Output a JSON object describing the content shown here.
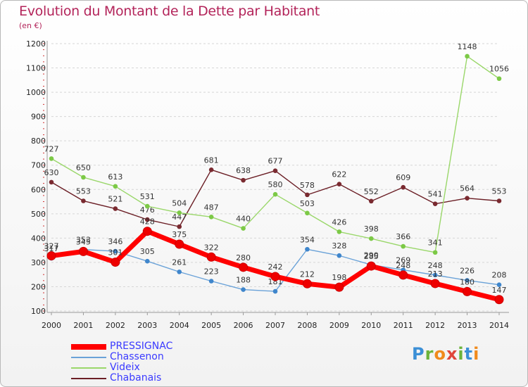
{
  "title": "Evolution du Montant de la Dette par Habitant",
  "subtitle": "(en €)",
  "logo": {
    "text": "Proxiti",
    "colors": [
      "#3b8fd6",
      "#6bb33a",
      "#f08a1c",
      "#e0453a",
      "#6bb33a",
      "#3b8fd6",
      "#f08a1c"
    ]
  },
  "chart_data": {
    "type": "line",
    "x": [
      "2000",
      "2001",
      "2002",
      "2003",
      "2004",
      "2005",
      "2006",
      "2007",
      "2008",
      "2009",
      "2010",
      "2011",
      "2012",
      "2013",
      "2014"
    ],
    "ylim": [
      100,
      1200
    ],
    "yticks": [
      100,
      200,
      300,
      400,
      500,
      600,
      700,
      800,
      900,
      1000,
      1100,
      1200
    ],
    "grid": "horizontal dashed",
    "legend_position": "bottom-left",
    "series": [
      {
        "name": "Chabanais",
        "color": "#6b1e25",
        "marker_color": "#7a2a30",
        "values": [
          630,
          553,
          521,
          476,
          447,
          681,
          638,
          677,
          578,
          622,
          552,
          609,
          541,
          564,
          553
        ]
      },
      {
        "name": "Videix",
        "color": "#9ad76a",
        "marker_color": "#7cc946",
        "values": [
          727,
          650,
          613,
          531,
          504,
          487,
          440,
          580,
          503,
          426,
          398,
          366,
          341,
          1148,
          1056
        ]
      },
      {
        "name": "Chassenon",
        "color": "#6aa2d8",
        "marker_color": "#3f86cc",
        "values": [
          317,
          353,
          346,
          305,
          261,
          223,
          188,
          181,
          354,
          328,
          290,
          269,
          248,
          226,
          208
        ]
      },
      {
        "name": "PRESSIGNAC",
        "color": "#ff0000",
        "marker_color": "#ee0000",
        "values": [
          327,
          345,
          301,
          428,
          375,
          322,
          280,
          242,
          212,
          198,
          285,
          248,
          213,
          180,
          147
        ]
      }
    ]
  }
}
